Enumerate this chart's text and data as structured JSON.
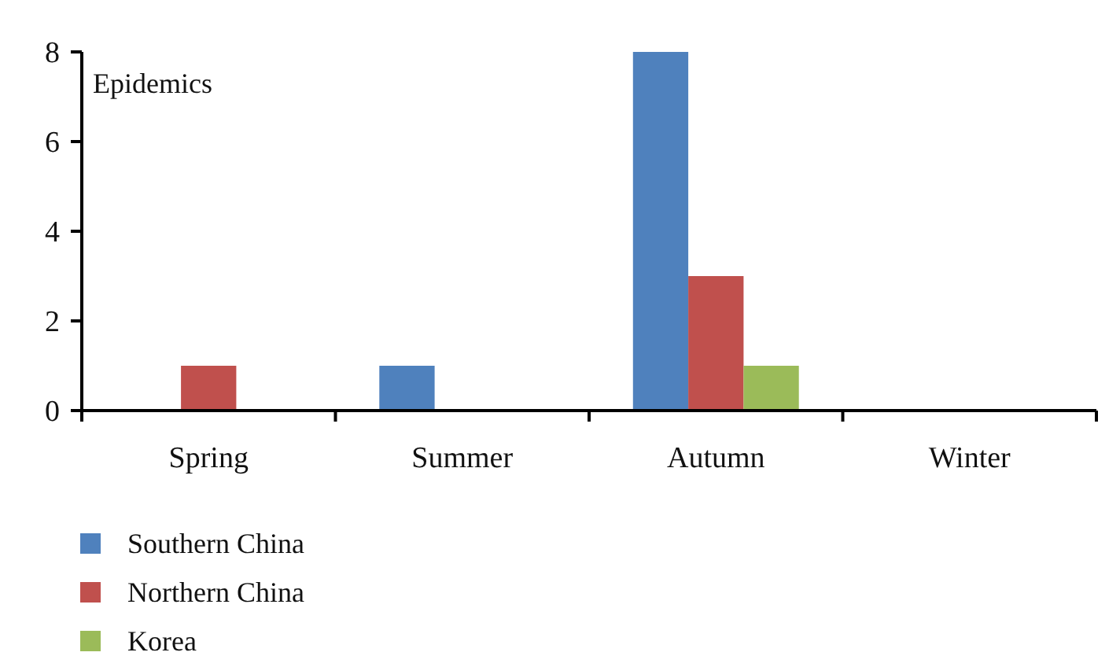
{
  "chart_data": {
    "type": "bar",
    "ylabel": "Epidemics",
    "categories": [
      "Spring",
      "Summer",
      "Autumn",
      "Winter"
    ],
    "series": [
      {
        "name": "Southern China",
        "color": "#4f81bd",
        "values": [
          0,
          1,
          8,
          0
        ]
      },
      {
        "name": "Northern China",
        "color": "#c0504d",
        "values": [
          1,
          0,
          3,
          0
        ]
      },
      {
        "name": "Korea",
        "color": "#9bbb59",
        "values": [
          0,
          0,
          1,
          0
        ]
      }
    ],
    "ylim": [
      0,
      8
    ],
    "yticks": [
      0,
      2,
      4,
      6,
      8
    ],
    "grid": false,
    "legend": "bottom left"
  }
}
